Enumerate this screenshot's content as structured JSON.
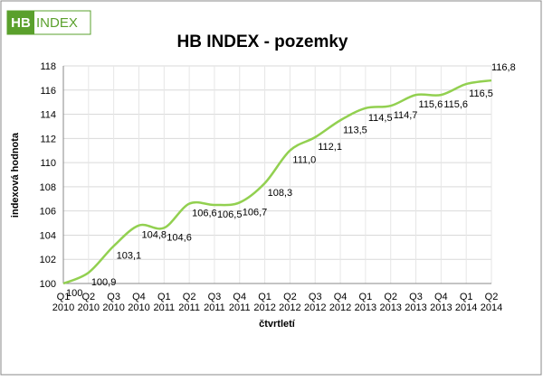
{
  "logo": {
    "part1": "HB",
    "part2": "INDEX"
  },
  "chart_data": {
    "type": "line",
    "title": "HB INDEX - pozemky",
    "y_label": "indexová hodnota",
    "x_label": "čtvrtletí",
    "categories": [
      "Q1 2010",
      "Q2 2010",
      "Q3 2010",
      "Q4 2010",
      "Q1 2011",
      "Q2 2011",
      "Q3 2011",
      "Q4 2011",
      "Q1 2012",
      "Q2 2012",
      "Q3 2012",
      "Q4 2012",
      "Q1 2013",
      "Q2 2013",
      "Q3 2013",
      "Q4 2013",
      "Q1 2014",
      "Q2 2014"
    ],
    "series": [
      {
        "name": "HB INDEX - pozemky",
        "color": "#92d050",
        "values": [
          100,
          100.9,
          103.1,
          104.8,
          104.6,
          106.6,
          106.5,
          106.7,
          108.3,
          111.0,
          112.1,
          113.5,
          114.5,
          114.7,
          115.6,
          115.6,
          116.5,
          116.8
        ],
        "value_labels": [
          "100",
          "100,9",
          "103,1",
          "104,8",
          "104,6",
          "106,6",
          "106,5",
          "106,7",
          "108,3",
          "111,0",
          "112,1",
          "113,5",
          "114,5",
          "114,7",
          "115,6",
          "115,6",
          "116,5",
          "116,8"
        ]
      }
    ],
    "ylim": [
      100,
      118
    ],
    "yticks": [
      100,
      102,
      104,
      106,
      108,
      110,
      112,
      114,
      116,
      118
    ],
    "grid": true
  }
}
